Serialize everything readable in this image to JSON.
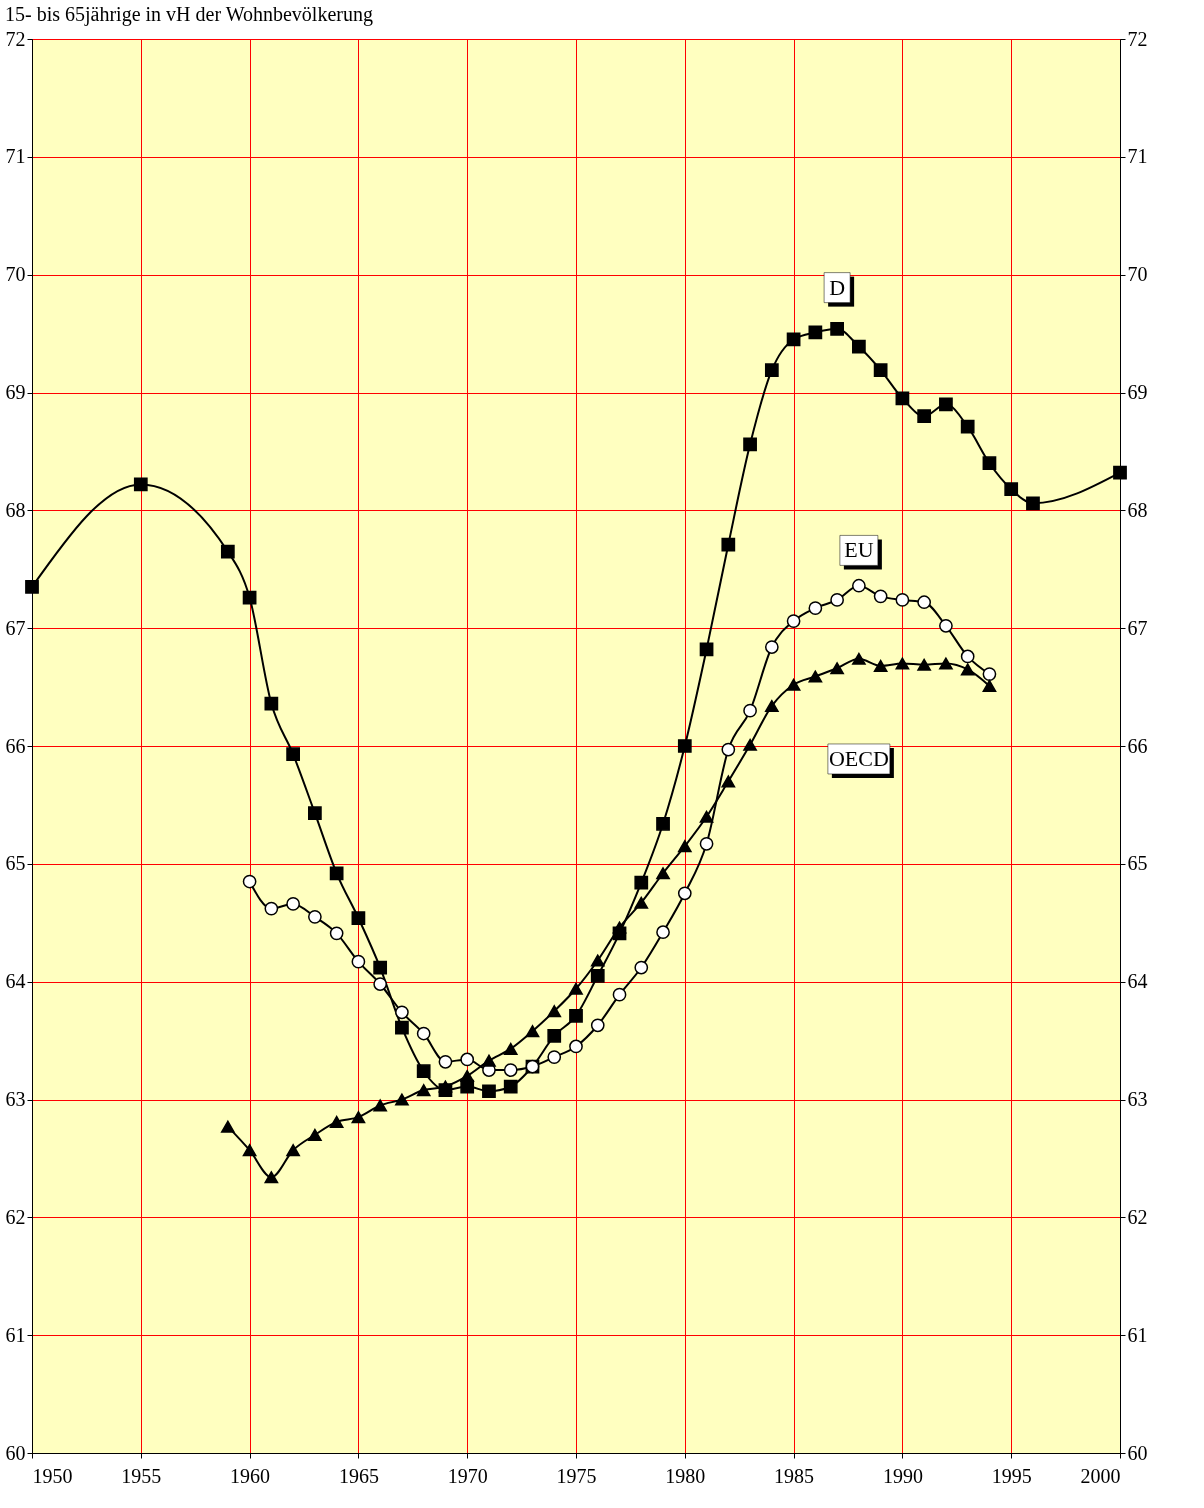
{
  "chart_data": {
    "type": "line",
    "title": "15- bis 65jährige in vH der Wohnbevölkerung",
    "xlim": [
      1950,
      2000
    ],
    "xticks": [
      1950,
      1955,
      1960,
      1965,
      1970,
      1975,
      1980,
      1985,
      1990,
      1995,
      2000
    ],
    "ylim": [
      60,
      72
    ],
    "yticks": [
      60,
      61,
      62,
      63,
      64,
      65,
      66,
      67,
      68,
      69,
      70,
      71,
      72
    ],
    "y2lim": [
      60,
      72
    ],
    "y2ticks": [
      60,
      61,
      62,
      63,
      64,
      65,
      66,
      67,
      68,
      69,
      70,
      71,
      72
    ],
    "grid": true,
    "legend": false,
    "series": [
      {
        "name": "D",
        "color": "#000000",
        "marker": "square",
        "x": [
          1950,
          1955,
          1959,
          1960,
          1961,
          1962,
          1963,
          1964,
          1965,
          1966,
          1967,
          1968,
          1969,
          1970,
          1971,
          1972,
          1973,
          1974,
          1975,
          1976,
          1977,
          1978,
          1979,
          1980,
          1981,
          1982,
          1983,
          1984,
          1985,
          1986,
          1987,
          1988,
          1989,
          1990,
          1991,
          1992,
          1993,
          1994,
          1995,
          1996,
          2000
        ],
        "values": [
          67.35,
          68.22,
          67.65,
          67.26,
          66.36,
          65.93,
          65.43,
          64.92,
          64.54,
          64.12,
          63.61,
          63.24,
          63.08,
          63.11,
          63.07,
          63.11,
          63.28,
          63.54,
          63.71,
          64.05,
          64.41,
          64.84,
          65.34,
          66.0,
          66.82,
          67.71,
          68.56,
          69.19,
          69.45,
          69.51,
          69.54,
          69.39,
          69.19,
          68.95,
          68.8,
          68.9,
          68.71,
          68.4,
          68.18,
          68.06,
          68.32
        ]
      },
      {
        "name": "EU",
        "color": "#000000",
        "marker": "circle",
        "x": [
          1960,
          1961,
          1962,
          1963,
          1964,
          1965,
          1966,
          1967,
          1968,
          1969,
          1970,
          1971,
          1972,
          1973,
          1974,
          1975,
          1976,
          1977,
          1978,
          1979,
          1980,
          1981,
          1982,
          1983,
          1984,
          1985,
          1986,
          1987,
          1988,
          1989,
          1990,
          1991,
          1992,
          1993,
          1994
        ],
        "values": [
          64.85,
          64.62,
          64.66,
          64.55,
          64.41,
          64.17,
          63.98,
          63.74,
          63.56,
          63.32,
          63.34,
          63.25,
          63.25,
          63.28,
          63.36,
          63.45,
          63.63,
          63.89,
          64.12,
          64.42,
          64.75,
          65.17,
          65.97,
          66.3,
          66.84,
          67.06,
          67.17,
          67.24,
          67.36,
          67.27,
          67.24,
          67.22,
          67.02,
          66.76,
          66.61
        ]
      },
      {
        "name": "OECD",
        "color": "#000000",
        "marker": "triangle",
        "x": [
          1959,
          1960,
          1961,
          1962,
          1963,
          1964,
          1965,
          1966,
          1967,
          1968,
          1969,
          1970,
          1971,
          1972,
          1973,
          1974,
          1975,
          1976,
          1977,
          1978,
          1979,
          1980,
          1981,
          1982,
          1983,
          1984,
          1985,
          1986,
          1987,
          1988,
          1989,
          1990,
          1991,
          1992,
          1993,
          1994
        ],
        "values": [
          62.77,
          62.57,
          62.34,
          62.57,
          62.7,
          62.81,
          62.85,
          62.95,
          63.0,
          63.08,
          63.11,
          63.2,
          63.33,
          63.43,
          63.58,
          63.75,
          63.94,
          64.18,
          64.46,
          64.67,
          64.92,
          65.15,
          65.4,
          65.7,
          66.01,
          66.34,
          66.52,
          66.59,
          66.66,
          66.74,
          66.68,
          66.7,
          66.69,
          66.7,
          66.65,
          66.51
        ]
      }
    ]
  }
}
